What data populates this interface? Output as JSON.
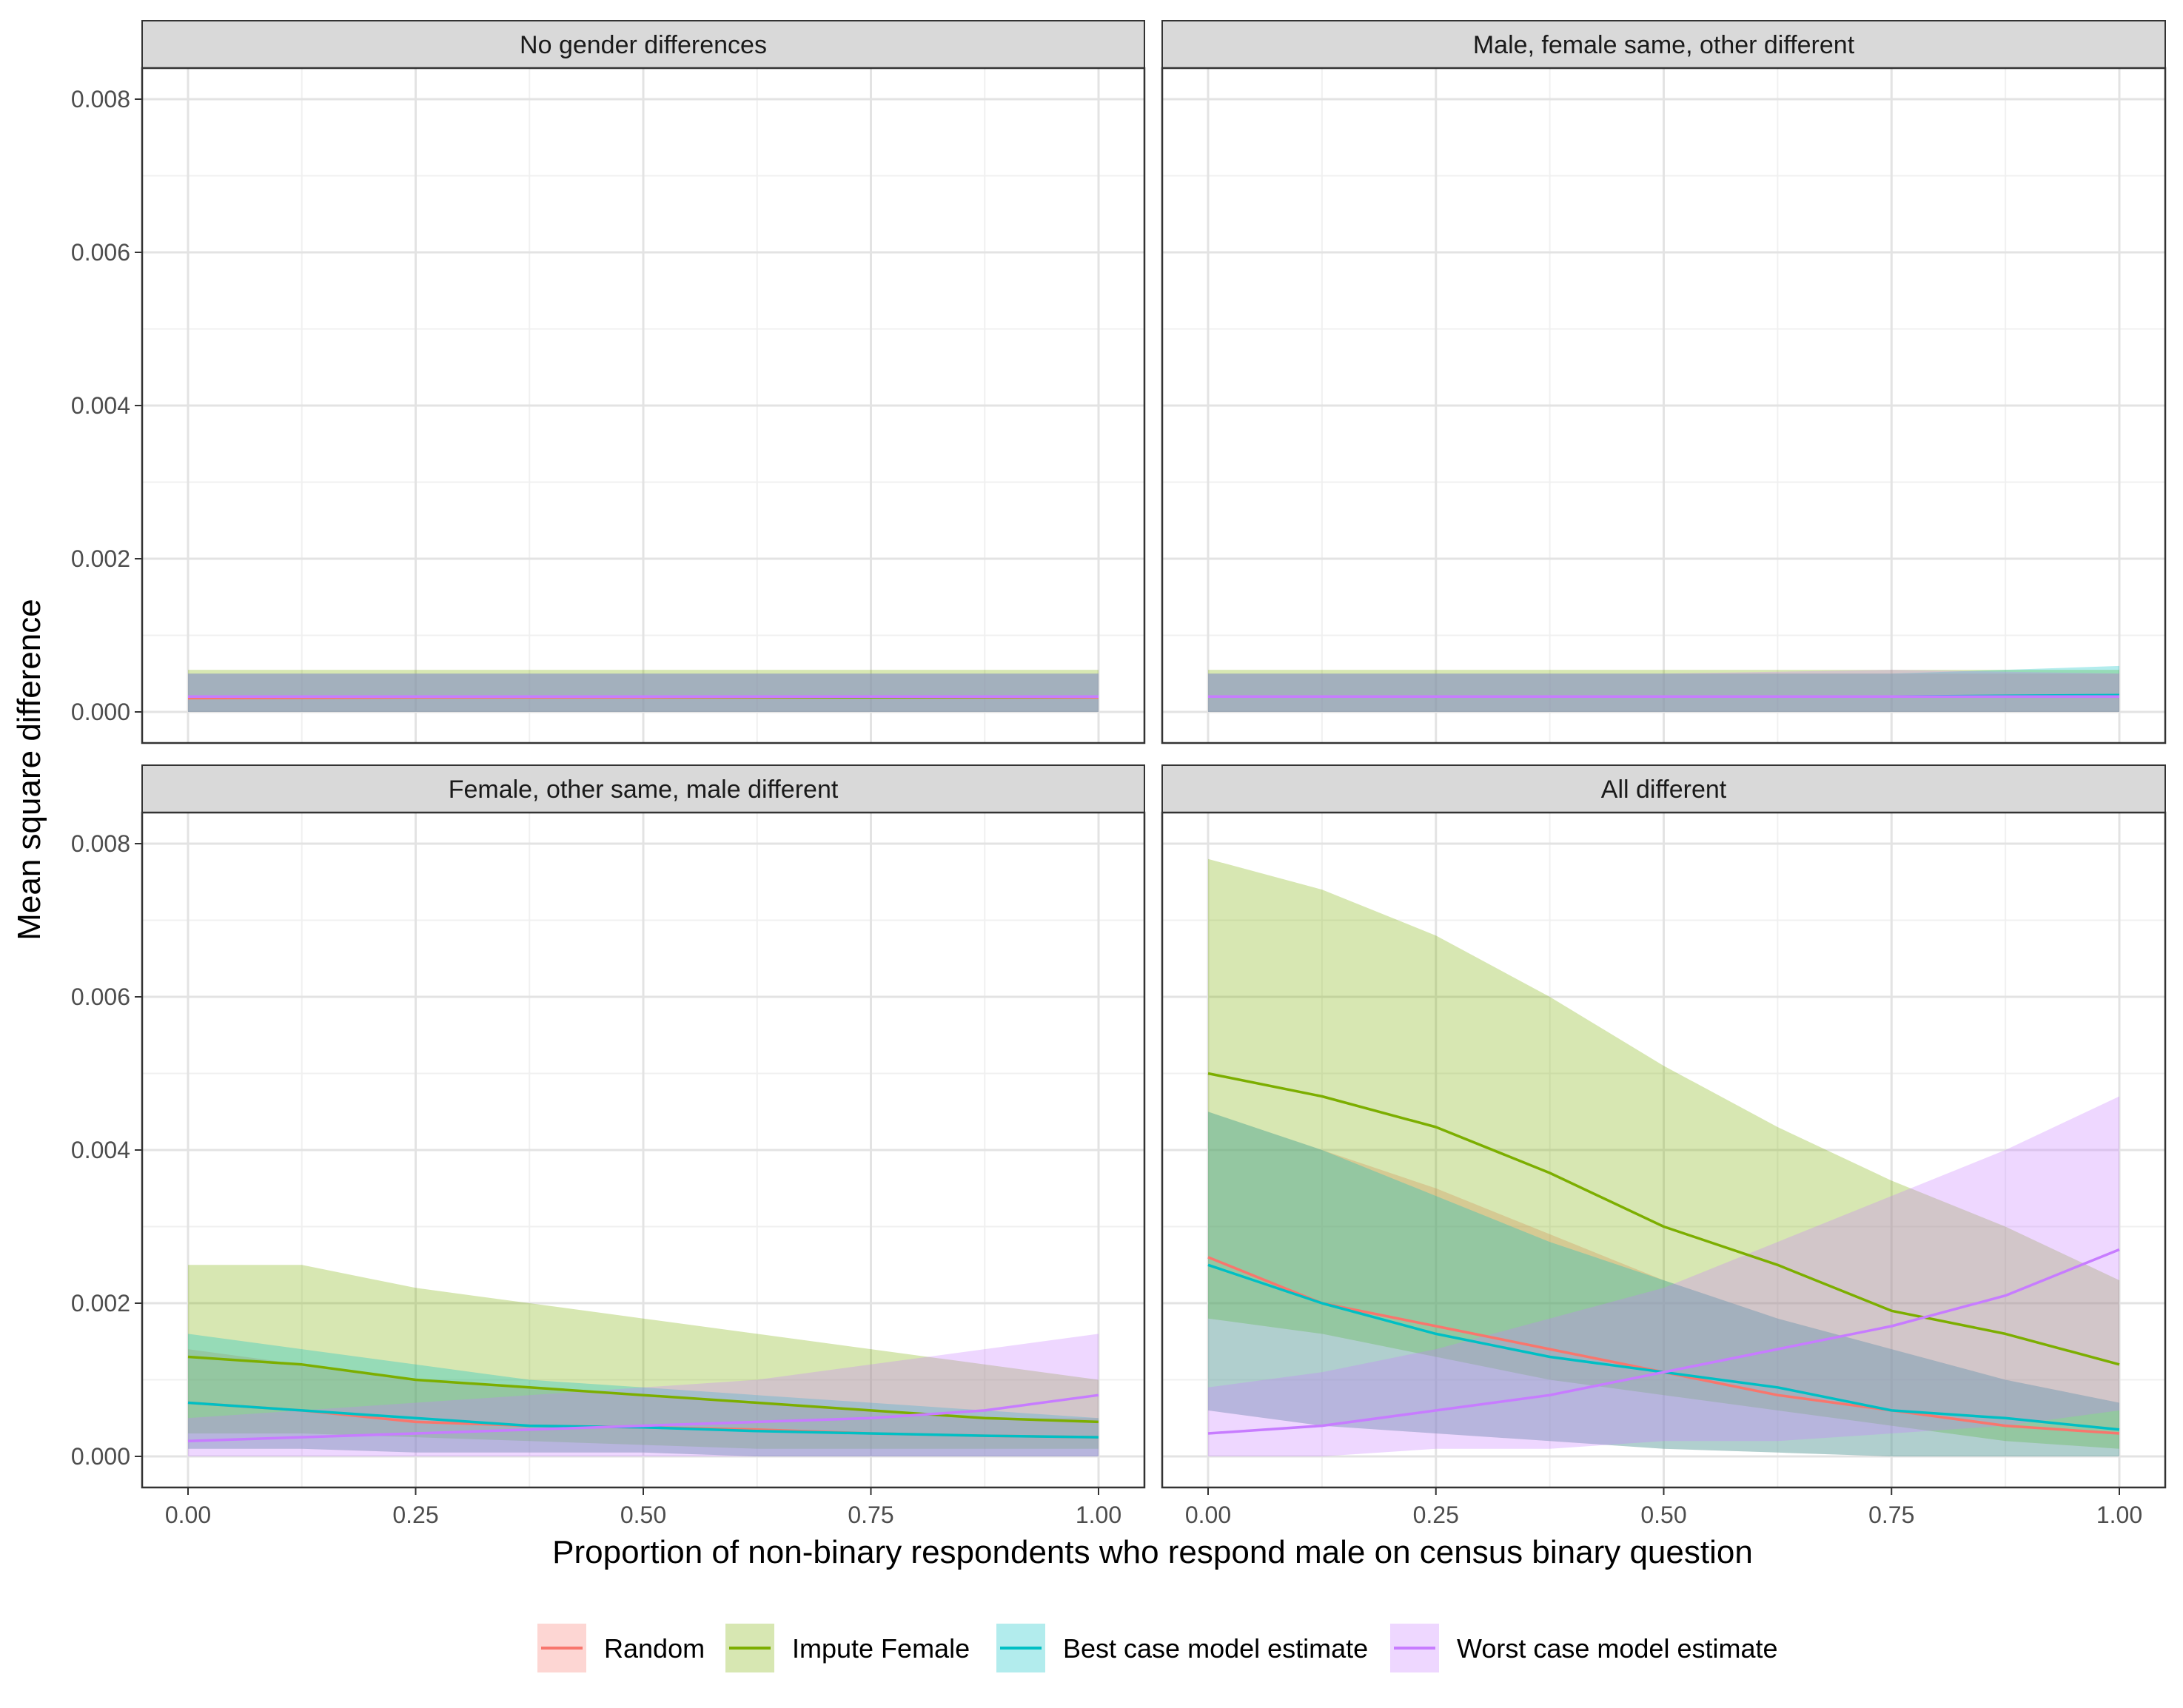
{
  "chart_data": {
    "type": "line",
    "layout": "facet_wrap_2x2",
    "xlabel": "Proportion of non-binary respondents who respond male on census binary question",
    "ylabel": "Mean square difference",
    "xlim": [
      0,
      1
    ],
    "ylim": [
      0,
      0.008
    ],
    "x_ticks": [
      "0.00",
      "0.25",
      "0.50",
      "0.75",
      "1.00"
    ],
    "x_tick_values": [
      0,
      0.25,
      0.5,
      0.75,
      1.0
    ],
    "y_ticks": [
      "0.000",
      "0.002",
      "0.004",
      "0.006",
      "0.008"
    ],
    "y_tick_values": [
      0,
      0.002,
      0.004,
      0.006,
      0.008
    ],
    "grid": true,
    "legend_position": "bottom",
    "band_note": "shaded ribbons show the spread of each series",
    "colors": {
      "Random": "#F8766D",
      "Impute Female": "#7CAE00",
      "Best case model estimate": "#00BFC4",
      "Worst case model estimate": "#C77CFF"
    },
    "legend": [
      "Random",
      "Impute Female",
      "Best case model estimate",
      "Worst case model estimate"
    ],
    "panels": [
      {
        "title": "No gender differences",
        "series": [
          {
            "name": "Random",
            "x": [
              0,
              0.25,
              0.5,
              0.75,
              1.0
            ],
            "y": [
              0.00018,
              0.00019,
              0.00019,
              0.00019,
              0.00019
            ],
            "lower": [
              0,
              0,
              0,
              0,
              0
            ],
            "upper": [
              0.0005,
              0.0005,
              0.0005,
              0.0005,
              0.0005
            ]
          },
          {
            "name": "Impute Female",
            "x": [
              0,
              0.25,
              0.5,
              0.75,
              1.0
            ],
            "y": [
              0.0002,
              0.0002,
              0.0002,
              0.00019,
              0.0002
            ],
            "lower": [
              0,
              0,
              0,
              0,
              0
            ],
            "upper": [
              0.00055,
              0.00055,
              0.00055,
              0.00055,
              0.00055
            ]
          },
          {
            "name": "Best case model estimate",
            "x": [
              0,
              0.25,
              0.5,
              0.75,
              1.0
            ],
            "y": [
              0.0002,
              0.0002,
              0.0002,
              0.0002,
              0.0002
            ],
            "lower": [
              0,
              0,
              0,
              0,
              0
            ],
            "upper": [
              0.0005,
              0.0005,
              0.0005,
              0.0005,
              0.0005
            ]
          },
          {
            "name": "Worst case model estimate",
            "x": [
              0,
              0.25,
              0.5,
              0.75,
              1.0
            ],
            "y": [
              0.0002,
              0.0002,
              0.0002,
              0.0002,
              0.0002
            ],
            "lower": [
              0,
              0,
              0,
              0,
              0
            ],
            "upper": [
              0.0005,
              0.0005,
              0.0005,
              0.0005,
              0.0005
            ]
          }
        ]
      },
      {
        "title": "Male, female same, other different",
        "series": [
          {
            "name": "Random",
            "x": [
              0,
              0.25,
              0.5,
              0.75,
              1.0
            ],
            "y": [
              0.0002,
              0.0002,
              0.0002,
              0.0002,
              0.0002
            ],
            "lower": [
              0,
              0,
              0,
              0,
              0
            ],
            "upper": [
              0.0005,
              0.0005,
              0.0005,
              0.0005,
              0.0005
            ]
          },
          {
            "name": "Impute Female",
            "x": [
              0,
              0.25,
              0.5,
              0.75,
              1.0
            ],
            "y": [
              0.0002,
              0.0002,
              0.0002,
              0.0002,
              0.0002
            ],
            "lower": [
              0,
              0,
              0,
              0,
              0
            ],
            "upper": [
              0.00055,
              0.00055,
              0.00055,
              0.00055,
              0.00055
            ]
          },
          {
            "name": "Best case model estimate",
            "x": [
              0,
              0.25,
              0.5,
              0.75,
              1.0
            ],
            "y": [
              0.0002,
              0.0002,
              0.0002,
              0.0002,
              0.00022
            ],
            "lower": [
              0,
              0,
              0,
              0,
              0
            ],
            "upper": [
              0.0005,
              0.0005,
              0.0005,
              0.0005,
              0.0006
            ]
          },
          {
            "name": "Worst case model estimate",
            "x": [
              0,
              0.25,
              0.5,
              0.75,
              1.0
            ],
            "y": [
              0.0002,
              0.0002,
              0.0002,
              0.0002,
              0.0002
            ],
            "lower": [
              0,
              0,
              0,
              0,
              0
            ],
            "upper": [
              0.0005,
              0.0005,
              0.0005,
              0.00055,
              0.0005
            ]
          }
        ]
      },
      {
        "title": "Female, other same, male different",
        "series": [
          {
            "name": "Random",
            "x": [
              0,
              0.125,
              0.25,
              0.375,
              0.5,
              0.625,
              0.75,
              0.875,
              1.0
            ],
            "y": [
              0.0007,
              0.0006,
              0.00045,
              0.0004,
              0.00038,
              0.00035,
              0.0003,
              0.00027,
              0.00025
            ],
            "lower": [
              0.0001,
              0.0001,
              5e-05,
              5e-05,
              5e-05,
              0,
              0,
              0,
              0
            ],
            "upper": [
              0.0014,
              0.0012,
              0.001,
              0.0009,
              0.0008,
              0.0007,
              0.0006,
              0.0005,
              0.0005
            ]
          },
          {
            "name": "Impute Female",
            "x": [
              0,
              0.125,
              0.25,
              0.375,
              0.5,
              0.625,
              0.75,
              0.875,
              1.0
            ],
            "y": [
              0.0013,
              0.0012,
              0.001,
              0.0009,
              0.0008,
              0.0007,
              0.0006,
              0.0005,
              0.00045
            ],
            "lower": [
              0.0003,
              0.0003,
              0.00025,
              0.0002,
              0.00015,
              0.0001,
              0.0001,
              0.0001,
              0.0001
            ],
            "upper": [
              0.0025,
              0.0025,
              0.0022,
              0.002,
              0.0018,
              0.0016,
              0.0014,
              0.0012,
              0.001
            ]
          },
          {
            "name": "Best case model estimate",
            "x": [
              0,
              0.125,
              0.25,
              0.375,
              0.5,
              0.625,
              0.75,
              0.875,
              1.0
            ],
            "y": [
              0.0007,
              0.0006,
              0.0005,
              0.0004,
              0.00038,
              0.00033,
              0.0003,
              0.00027,
              0.00025
            ],
            "lower": [
              0.0001,
              0.0001,
              5e-05,
              5e-05,
              5e-05,
              0,
              0,
              0,
              0
            ],
            "upper": [
              0.0016,
              0.0014,
              0.0012,
              0.001,
              0.0009,
              0.0008,
              0.0007,
              0.0006,
              0.0005
            ]
          },
          {
            "name": "Worst case model estimate",
            "x": [
              0,
              0.125,
              0.25,
              0.375,
              0.5,
              0.625,
              0.75,
              0.875,
              1.0
            ],
            "y": [
              0.0002,
              0.00025,
              0.0003,
              0.00035,
              0.0004,
              0.00045,
              0.0005,
              0.0006,
              0.0008
            ],
            "lower": [
              0,
              0,
              0,
              0,
              0,
              0,
              0,
              0,
              0
            ],
            "upper": [
              0.0005,
              0.0006,
              0.0007,
              0.0008,
              0.0009,
              0.001,
              0.0012,
              0.0014,
              0.0016
            ]
          }
        ]
      },
      {
        "title": "All different",
        "series": [
          {
            "name": "Random",
            "x": [
              0,
              0.125,
              0.25,
              0.375,
              0.5,
              0.625,
              0.75,
              0.875,
              1.0
            ],
            "y": [
              0.0026,
              0.002,
              0.0017,
              0.0014,
              0.0011,
              0.0008,
              0.0006,
              0.0004,
              0.0003
            ],
            "lower": [
              0.0006,
              0.0004,
              0.0003,
              0.0002,
              0.0001,
              5e-05,
              0,
              0,
              0
            ],
            "upper": [
              0.0045,
              0.004,
              0.0035,
              0.0029,
              0.0023,
              0.0018,
              0.0014,
              0.001,
              0.0007
            ]
          },
          {
            "name": "Impute Female",
            "x": [
              0,
              0.125,
              0.25,
              0.375,
              0.5,
              0.625,
              0.75,
              0.875,
              1.0
            ],
            "y": [
              0.005,
              0.0047,
              0.0043,
              0.0037,
              0.003,
              0.0025,
              0.0019,
              0.0016,
              0.0012
            ],
            "lower": [
              0.0018,
              0.0016,
              0.0013,
              0.001,
              0.0008,
              0.0006,
              0.0004,
              0.0002,
              0.0001
            ],
            "upper": [
              0.0078,
              0.0074,
              0.0068,
              0.006,
              0.0051,
              0.0043,
              0.0036,
              0.003,
              0.0023
            ]
          },
          {
            "name": "Best case model estimate",
            "x": [
              0,
              0.125,
              0.25,
              0.375,
              0.5,
              0.625,
              0.75,
              0.875,
              1.0
            ],
            "y": [
              0.0025,
              0.002,
              0.0016,
              0.0013,
              0.0011,
              0.0009,
              0.0006,
              0.0005,
              0.00035
            ],
            "lower": [
              0.0006,
              0.0004,
              0.0003,
              0.0002,
              0.0001,
              5e-05,
              0,
              0,
              0
            ],
            "upper": [
              0.0045,
              0.004,
              0.0034,
              0.0028,
              0.0023,
              0.0018,
              0.0014,
              0.001,
              0.0007
            ]
          },
          {
            "name": "Worst case model estimate",
            "x": [
              0,
              0.125,
              0.25,
              0.375,
              0.5,
              0.625,
              0.75,
              0.875,
              1.0
            ],
            "y": [
              0.0003,
              0.0004,
              0.0006,
              0.0008,
              0.0011,
              0.0014,
              0.0017,
              0.0021,
              0.0027
            ],
            "lower": [
              0,
              0,
              0.0001,
              0.0001,
              0.0002,
              0.0002,
              0.0003,
              0.0004,
              0.0006
            ],
            "upper": [
              0.0009,
              0.0011,
              0.0014,
              0.0018,
              0.0022,
              0.0028,
              0.0034,
              0.004,
              0.0047
            ]
          }
        ]
      }
    ]
  }
}
